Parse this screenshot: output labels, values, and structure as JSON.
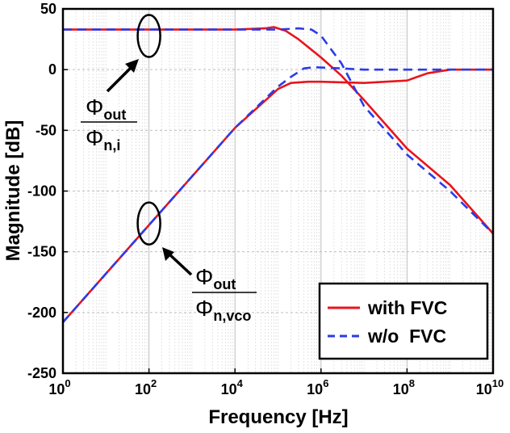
{
  "chart_data": {
    "type": "line",
    "xscale": "log",
    "xlabel": "Frequency [Hz]",
    "ylabel": "Magnitude [dB]",
    "xlim": [
      1,
      10000000000
    ],
    "ylim": [
      -250,
      50
    ],
    "grid": true,
    "legend_position": "bottom-right",
    "x_ticks": [
      {
        "base": "10",
        "exp": "0",
        "value": 1
      },
      {
        "base": "10",
        "exp": "2",
        "value": 100
      },
      {
        "base": "10",
        "exp": "4",
        "value": 10000
      },
      {
        "base": "10",
        "exp": "6",
        "value": 1000000
      },
      {
        "base": "10",
        "exp": "8",
        "value": 100000000
      },
      {
        "base": "10",
        "exp": "10",
        "value": 10000000000
      }
    ],
    "y_ticks": [
      "50",
      "0",
      "-50",
      "-100",
      "-150",
      "-200",
      "-250"
    ],
    "series": [
      {
        "name": "with FVC",
        "color": "#e8141c",
        "dash": "solid",
        "curve": "phi_out/phi_n,i",
        "x": [
          1,
          10000,
          50000,
          80000,
          150000,
          300000,
          1000000,
          3000000,
          10000000,
          100000000,
          1000000000,
          10000000000
        ],
        "y": [
          33,
          33,
          34,
          35,
          32,
          25,
          10,
          -5,
          -25,
          -65,
          -95,
          -135
        ]
      },
      {
        "name": "with FVC",
        "color": "#e8141c",
        "dash": "solid",
        "curve": "phi_out/phi_n,vco",
        "x": [
          1,
          100,
          10000,
          100000,
          200000,
          500000,
          1000000,
          10000000,
          100000000,
          300000000,
          1000000000,
          10000000000
        ],
        "y": [
          -208,
          -128,
          -48,
          -16,
          -11,
          -10,
          -10,
          -11,
          -9,
          -3,
          0,
          0
        ]
      },
      {
        "name": "w/o  FVC",
        "color": "#2b3be8",
        "dash": "dashed",
        "curve": "phi_out/phi_n,i",
        "x": [
          1,
          100000,
          300000,
          600000,
          1000000,
          3000000,
          10000000,
          100000000,
          1000000000,
          10000000000
        ],
        "y": [
          33,
          33,
          34,
          33,
          28,
          5,
          -30,
          -70,
          -100,
          -135
        ]
      },
      {
        "name": "w/o  FVC",
        "color": "#2b3be8",
        "dash": "dashed",
        "curve": "phi_out/phi_n,vco",
        "x": [
          1,
          100,
          10000,
          100000,
          200000,
          400000,
          700000,
          3000000,
          10000000,
          1000000000,
          10000000000
        ],
        "y": [
          -208,
          -128,
          -48,
          -14,
          -6,
          1,
          2,
          1,
          0,
          0,
          0
        ]
      }
    ],
    "legend": [
      {
        "label": "with FVC",
        "color": "#e8141c",
        "dash": "solid"
      },
      {
        "label": "w/o  FVC",
        "color": "#2b3be8",
        "dash": "dashed"
      }
    ],
    "annotations": [
      {
        "id": "transfer-1",
        "numerator": {
          "base": "Φ",
          "sub": "out"
        },
        "denominator": {
          "base": "Φ",
          "sub": "n,i"
        },
        "marker_x": 100,
        "marker_y": 33
      },
      {
        "id": "transfer-2",
        "numerator": {
          "base": "Φ",
          "sub": "out"
        },
        "denominator": {
          "base": "Φ",
          "sub": "n,vco"
        },
        "marker_x": 100,
        "marker_y": -128
      }
    ]
  }
}
